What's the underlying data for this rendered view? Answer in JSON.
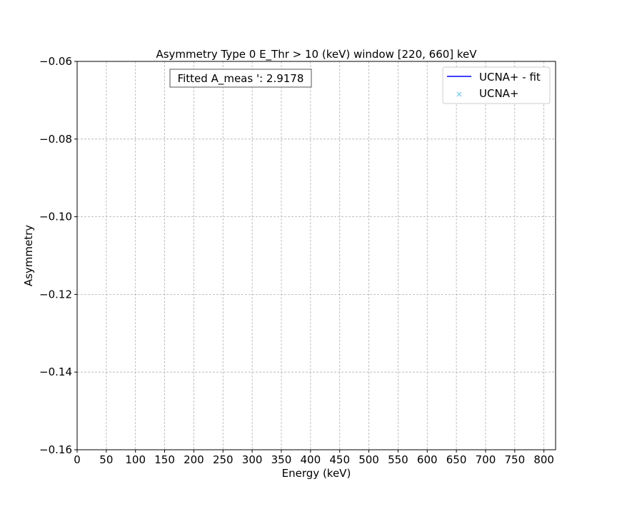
{
  "chart_data": {
    "type": "scatter",
    "title": "Asymmetry Type 0 E_Thr > 10 (keV) window [220, 660] keV",
    "xlabel": "Energy (keV)",
    "ylabel": "Asymmetry",
    "xlim": [
      0,
      820
    ],
    "ylim": [
      -0.16,
      -0.06
    ],
    "xticks": [
      0,
      50,
      100,
      150,
      200,
      250,
      300,
      350,
      400,
      450,
      500,
      550,
      600,
      650,
      700,
      750,
      800
    ],
    "xtick_labels": [
      "0",
      "50",
      "100",
      "150",
      "200",
      "250",
      "300",
      "350",
      "400",
      "450",
      "500",
      "550",
      "600",
      "650",
      "700",
      "750",
      "800"
    ],
    "yticks": [
      -0.16,
      -0.14,
      -0.12,
      -0.1,
      -0.08,
      -0.06
    ],
    "ytick_labels": [
      "−0.16",
      "−0.14",
      "−0.12",
      "−0.10",
      "−0.08",
      "−0.06"
    ],
    "grid": true,
    "legend_position": "top-right",
    "series": [
      {
        "name": "UCNA+ - fit",
        "kind": "line",
        "color": "#0000ff",
        "x": [],
        "y": []
      },
      {
        "name": "UCNA+",
        "kind": "scatter",
        "marker": "x",
        "color": "#87ceeb",
        "x": [],
        "y": []
      }
    ],
    "annotation": {
      "text": "Fitted A_meas ': 2.9178"
    }
  }
}
